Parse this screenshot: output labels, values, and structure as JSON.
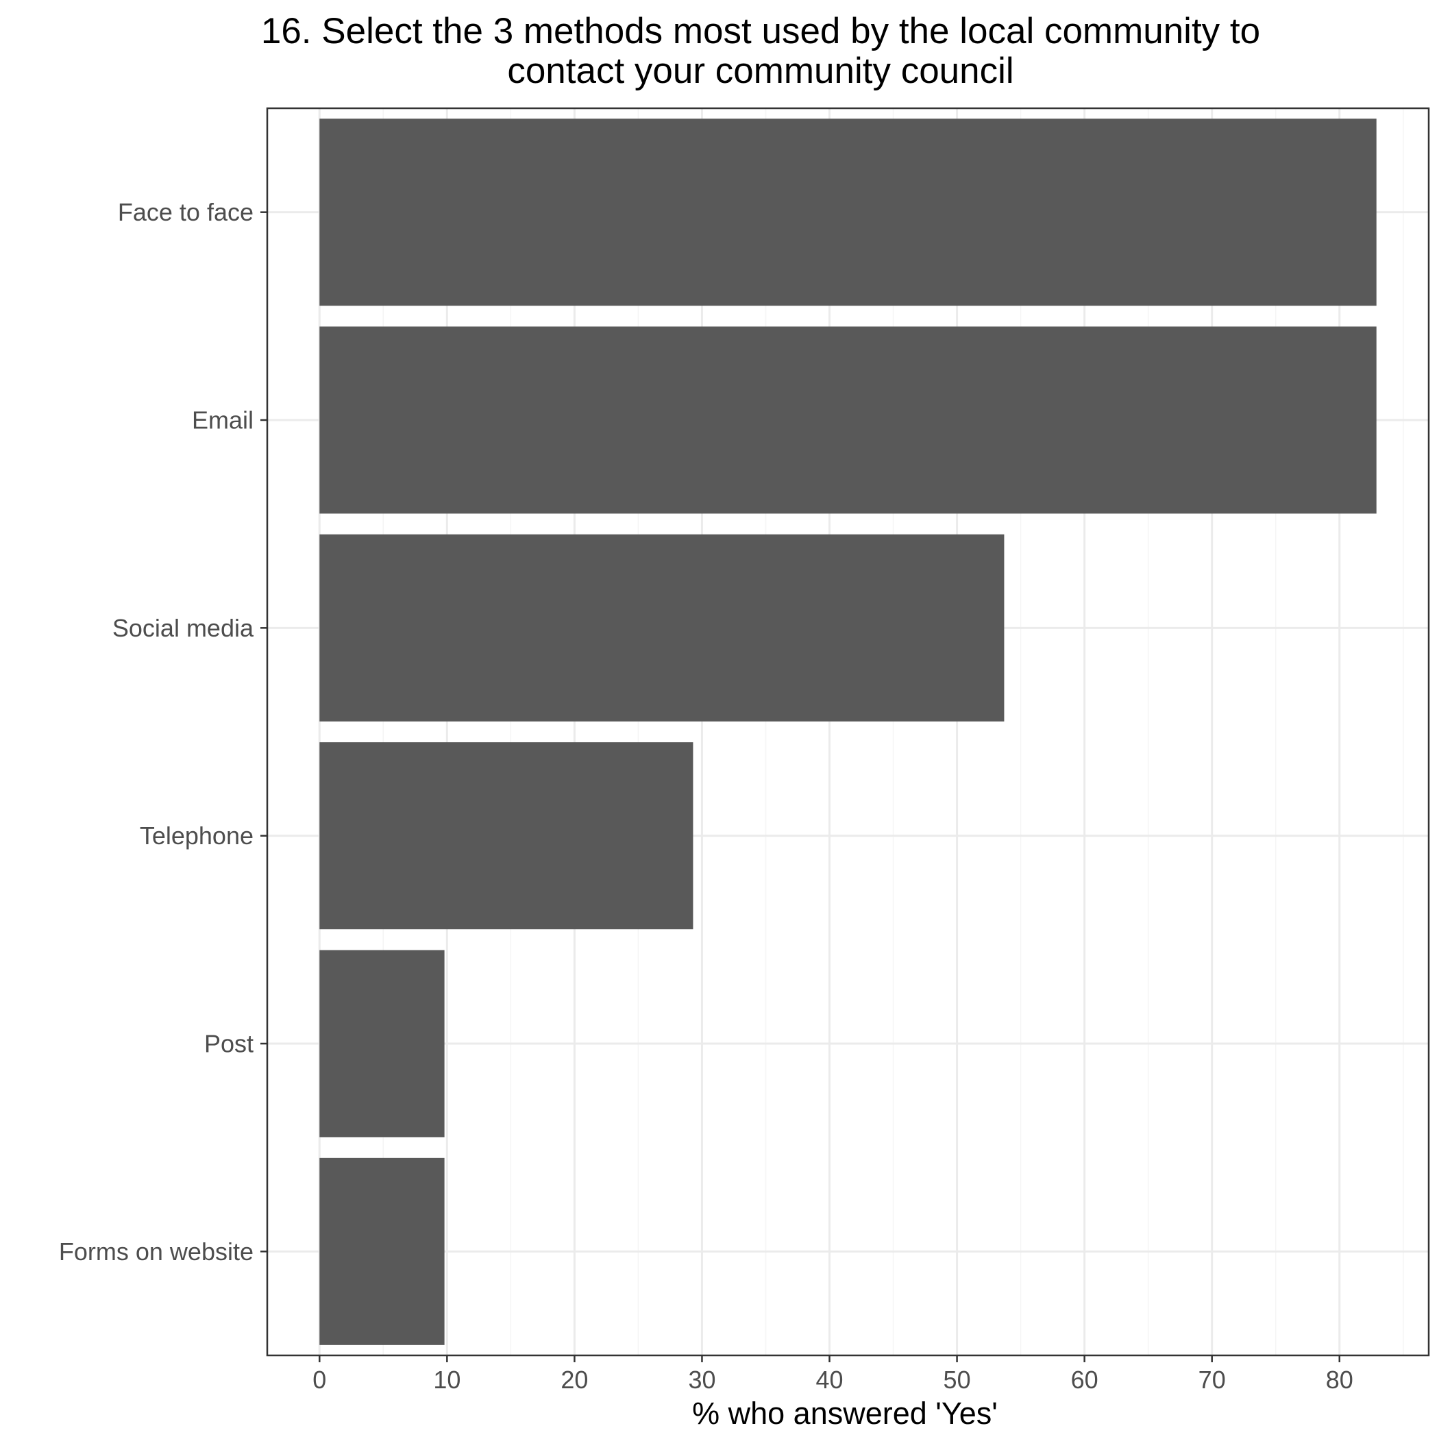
{
  "chart_data": {
    "type": "bar",
    "orientation": "horizontal",
    "title_lines": [
      "16. Select the 3 methods most used by the local community to",
      "contact your community council"
    ],
    "xlabel": "% who answered 'Yes'",
    "ylabel": "",
    "categories": [
      "Face to face",
      "Email",
      "Social media",
      "Telephone",
      "Post",
      "Forms on website"
    ],
    "values": [
      82.9,
      82.9,
      53.7,
      29.3,
      9.8,
      9.8
    ],
    "xlim": [
      -4.1,
      87.0
    ],
    "xticks": [
      0,
      10,
      20,
      30,
      40,
      50,
      60,
      70,
      80
    ],
    "xtick_labels": [
      "0",
      "10",
      "20",
      "30",
      "40",
      "50",
      "60",
      "70",
      "80"
    ],
    "grid": true,
    "legend": "none",
    "colors": {
      "bar": "#595959",
      "grid_major": "#ebebeb",
      "grid_minor": "#f5f5f5",
      "panel_border": "#333333",
      "tick_text": "#4d4d4d",
      "title_text": "#000000"
    }
  }
}
